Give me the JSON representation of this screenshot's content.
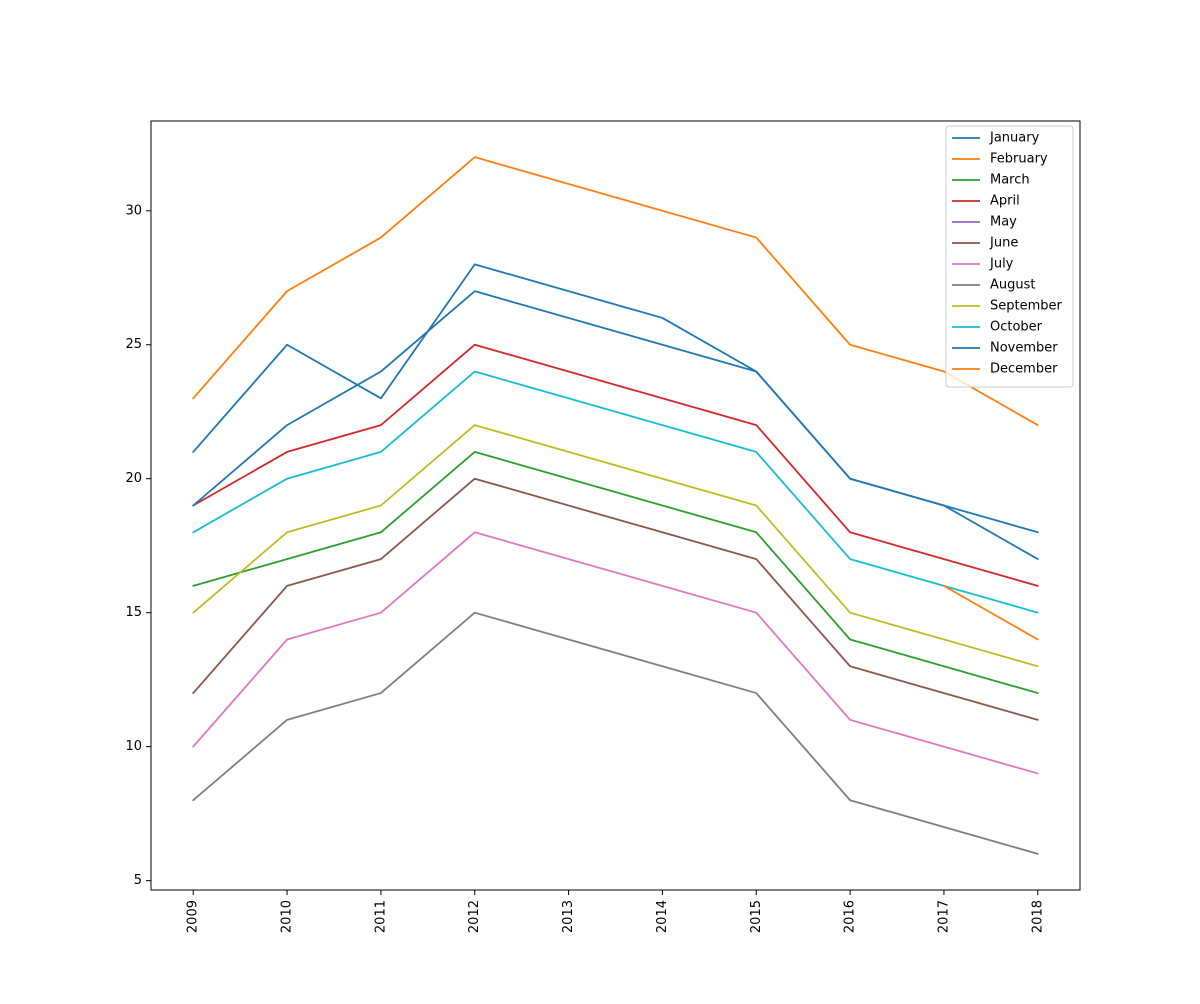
{
  "chart_data": {
    "type": "line",
    "title": "",
    "xlabel": "",
    "ylabel": "",
    "x": [
      "2009",
      "2010",
      "2011",
      "2012",
      "2013",
      "2014",
      "2015",
      "2016",
      "2017",
      "2018"
    ],
    "x_ticks": [
      "2009",
      "2010",
      "2011",
      "2012",
      "2013",
      "2014",
      "2015",
      "2016",
      "2017",
      "2018"
    ],
    "y_ticks": [
      "5",
      "10",
      "15",
      "20",
      "25",
      "30"
    ],
    "ylim": [
      4.65,
      33.35
    ],
    "grid": false,
    "legend_position": "top-right",
    "series": [
      {
        "name": "January",
        "color": "#1f77b4",
        "points": [
          [
            2009,
            21
          ],
          [
            2010,
            25
          ],
          [
            2011,
            23
          ],
          [
            2012,
            28
          ],
          [
            2014,
            26
          ],
          [
            2015,
            24
          ],
          [
            2016,
            20
          ],
          [
            2017,
            19
          ],
          [
            2018,
            18
          ]
        ]
      },
      {
        "name": "February",
        "color": "#ff7f0e",
        "points": [
          [
            2009,
            23
          ],
          [
            2010,
            27
          ],
          [
            2011,
            29
          ],
          [
            2012,
            32
          ],
          [
            2015,
            29
          ],
          [
            2016,
            25
          ],
          [
            2017,
            24
          ],
          [
            2018,
            22
          ]
        ]
      },
      {
        "name": "March",
        "color": "#2ca02c",
        "points": [
          [
            2009,
            16
          ],
          [
            2011,
            18
          ],
          [
            2012,
            21
          ],
          [
            2015,
            18
          ],
          [
            2016,
            14
          ],
          [
            2018,
            12
          ]
        ]
      },
      {
        "name": "April",
        "color": "#d62728",
        "points": [
          [
            2009,
            19
          ],
          [
            2010,
            21
          ],
          [
            2011,
            22
          ],
          [
            2012,
            25
          ],
          [
            2015,
            22
          ],
          [
            2016,
            18
          ],
          [
            2018,
            16
          ]
        ]
      },
      {
        "name": "May",
        "color": "#9467bd",
        "points": []
      },
      {
        "name": "June",
        "color": "#8c564b",
        "points": [
          [
            2009,
            12
          ],
          [
            2010,
            16
          ],
          [
            2011,
            17
          ],
          [
            2012,
            20
          ],
          [
            2015,
            17
          ],
          [
            2016,
            13
          ],
          [
            2018,
            11
          ]
        ]
      },
      {
        "name": "July",
        "color": "#e377c2",
        "points": [
          [
            2009,
            10
          ],
          [
            2010,
            14
          ],
          [
            2011,
            15
          ],
          [
            2012,
            18
          ],
          [
            2015,
            15
          ],
          [
            2016,
            11
          ],
          [
            2018,
            9
          ]
        ]
      },
      {
        "name": "August",
        "color": "#7f7f7f",
        "points": [
          [
            2009,
            8
          ],
          [
            2010,
            11
          ],
          [
            2011,
            12
          ],
          [
            2012,
            15
          ],
          [
            2015,
            12
          ],
          [
            2016,
            8
          ],
          [
            2018,
            6
          ]
        ]
      },
      {
        "name": "September",
        "color": "#bcbd22",
        "points": [
          [
            2009,
            15
          ],
          [
            2010,
            18
          ],
          [
            2011,
            19
          ],
          [
            2012,
            22
          ],
          [
            2015,
            19
          ],
          [
            2016,
            15
          ],
          [
            2018,
            13
          ]
        ]
      },
      {
        "name": "October",
        "color": "#17becf",
        "points": [
          [
            2009,
            18
          ],
          [
            2010,
            20
          ],
          [
            2011,
            21
          ],
          [
            2012,
            24
          ],
          [
            2015,
            21
          ],
          [
            2016,
            17
          ],
          [
            2017,
            16
          ],
          [
            2018,
            15
          ]
        ]
      },
      {
        "name": "November",
        "color": "#1f77b4",
        "points": [
          [
            2009,
            19
          ],
          [
            2010,
            22
          ],
          [
            2011,
            24
          ],
          [
            2012,
            27
          ],
          [
            2015,
            24
          ],
          [
            2016,
            20
          ],
          [
            2017,
            19
          ],
          [
            2018,
            17
          ]
        ]
      },
      {
        "name": "December",
        "color": "#ff7f0e",
        "points": [
          [
            2017,
            16
          ],
          [
            2018,
            14
          ]
        ]
      }
    ]
  }
}
